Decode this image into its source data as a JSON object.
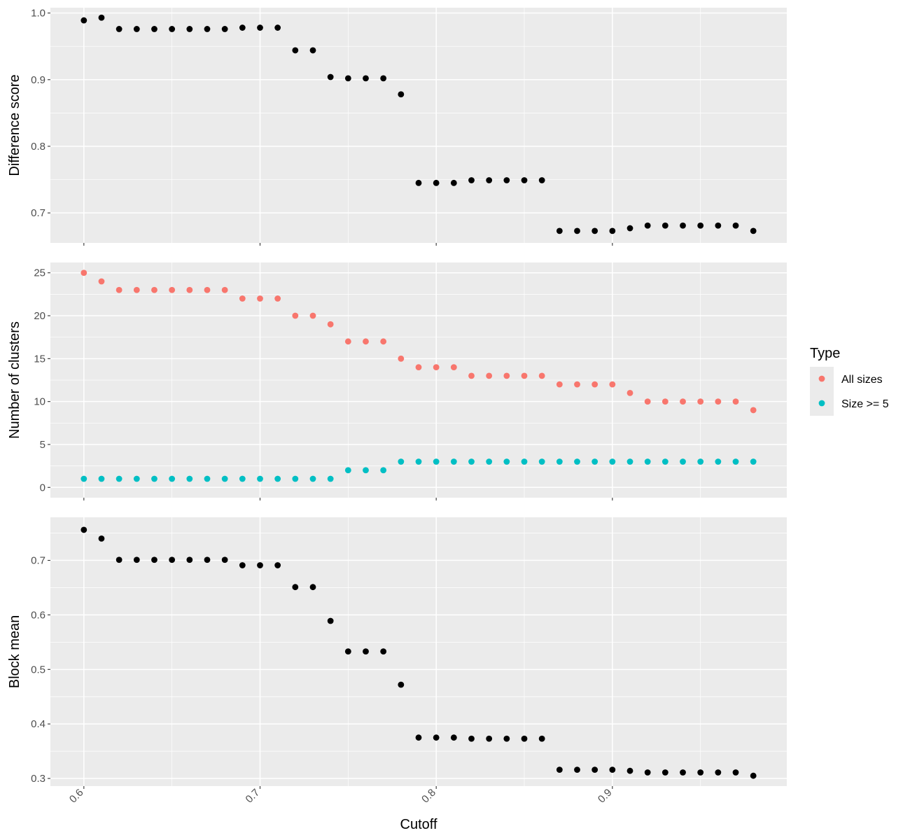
{
  "colors": {
    "panel_bg": "#ebebeb",
    "grid": "#ffffff",
    "point": "#000000",
    "all_sizes": "#f8766d",
    "size_ge_5": "#00bfc4",
    "tick": "#333333"
  },
  "x_axis": {
    "title": "Cutoff",
    "ticks": [
      0.6,
      0.7,
      0.8,
      0.9
    ],
    "tick_labels": [
      "0.6",
      "0.7",
      "0.8",
      "0.9"
    ],
    "range": [
      0.581,
      0.999
    ]
  },
  "legend": {
    "title": "Type",
    "items": [
      {
        "label": "All sizes",
        "color": "#f8766d"
      },
      {
        "label": "Size >= 5",
        "color": "#00bfc4"
      }
    ]
  },
  "chart_data": [
    {
      "type": "scatter",
      "ylabel": "Difference score",
      "ylim": [
        0.655,
        1.008
      ],
      "yticks": [
        0.7,
        0.8,
        0.9,
        1.0
      ],
      "ytick_labels": [
        "0.7",
        "0.8",
        "0.9",
        "1.0"
      ],
      "x": [
        0.6,
        0.61,
        0.62,
        0.63,
        0.64,
        0.65,
        0.66,
        0.67,
        0.68,
        0.69,
        0.7,
        0.71,
        0.72,
        0.73,
        0.74,
        0.75,
        0.76,
        0.77,
        0.78,
        0.79,
        0.8,
        0.81,
        0.82,
        0.83,
        0.84,
        0.85,
        0.86,
        0.87,
        0.88,
        0.89,
        0.9,
        0.91,
        0.92,
        0.93,
        0.94,
        0.95,
        0.96,
        0.97,
        0.98
      ],
      "series": [
        {
          "values": [
            0.989,
            0.993,
            0.976,
            0.976,
            0.976,
            0.976,
            0.976,
            0.976,
            0.976,
            0.978,
            0.978,
            0.978,
            0.944,
            0.944,
            0.904,
            0.902,
            0.902,
            0.902,
            0.878,
            0.745,
            0.745,
            0.745,
            0.749,
            0.749,
            0.749,
            0.749,
            0.749,
            0.673,
            0.673,
            0.673,
            0.673,
            0.677,
            0.681,
            0.681,
            0.681,
            0.681,
            0.681,
            0.681,
            0.673
          ]
        }
      ]
    },
    {
      "type": "scatter",
      "ylabel": "Number of clusters",
      "ylim": [
        -1.2,
        26.2
      ],
      "yticks": [
        0,
        5,
        10,
        15,
        20,
        25
      ],
      "ytick_labels": [
        "0",
        "5",
        "10",
        "15",
        "20",
        "25"
      ],
      "x": [
        0.6,
        0.61,
        0.62,
        0.63,
        0.64,
        0.65,
        0.66,
        0.67,
        0.68,
        0.69,
        0.7,
        0.71,
        0.72,
        0.73,
        0.74,
        0.75,
        0.76,
        0.77,
        0.78,
        0.79,
        0.8,
        0.81,
        0.82,
        0.83,
        0.84,
        0.85,
        0.86,
        0.87,
        0.88,
        0.89,
        0.9,
        0.91,
        0.92,
        0.93,
        0.94,
        0.95,
        0.96,
        0.97,
        0.98
      ],
      "series": [
        {
          "name": "All sizes",
          "values": [
            25,
            24,
            23,
            23,
            23,
            23,
            23,
            23,
            23,
            22,
            22,
            22,
            20,
            20,
            19,
            17,
            17,
            17,
            15,
            14,
            14,
            14,
            13,
            13,
            13,
            13,
            13,
            12,
            12,
            12,
            12,
            11,
            10,
            10,
            10,
            10,
            10,
            10,
            9
          ]
        },
        {
          "name": "Size >= 5",
          "values": [
            1,
            1,
            1,
            1,
            1,
            1,
            1,
            1,
            1,
            1,
            1,
            1,
            1,
            1,
            1,
            2,
            2,
            2,
            3,
            3,
            3,
            3,
            3,
            3,
            3,
            3,
            3,
            3,
            3,
            3,
            3,
            3,
            3,
            3,
            3,
            3,
            3,
            3,
            3
          ]
        }
      ]
    },
    {
      "type": "scatter",
      "ylabel": "Block mean",
      "ylim": [
        0.286,
        0.779
      ],
      "yticks": [
        0.3,
        0.4,
        0.5,
        0.6,
        0.7
      ],
      "ytick_labels": [
        "0.3",
        "0.4",
        "0.5",
        "0.6",
        "0.7"
      ],
      "x": [
        0.6,
        0.61,
        0.62,
        0.63,
        0.64,
        0.65,
        0.66,
        0.67,
        0.68,
        0.69,
        0.7,
        0.71,
        0.72,
        0.73,
        0.74,
        0.75,
        0.76,
        0.77,
        0.78,
        0.79,
        0.8,
        0.81,
        0.82,
        0.83,
        0.84,
        0.85,
        0.86,
        0.87,
        0.88,
        0.89,
        0.9,
        0.91,
        0.92,
        0.93,
        0.94,
        0.95,
        0.96,
        0.97,
        0.98
      ],
      "series": [
        {
          "values": [
            0.756,
            0.74,
            0.701,
            0.701,
            0.701,
            0.701,
            0.701,
            0.701,
            0.701,
            0.691,
            0.691,
            0.691,
            0.651,
            0.651,
            0.589,
            0.533,
            0.533,
            0.533,
            0.472,
            0.375,
            0.375,
            0.375,
            0.373,
            0.373,
            0.373,
            0.373,
            0.373,
            0.316,
            0.316,
            0.316,
            0.316,
            0.314,
            0.311,
            0.311,
            0.311,
            0.311,
            0.311,
            0.311,
            0.305
          ]
        }
      ]
    }
  ]
}
